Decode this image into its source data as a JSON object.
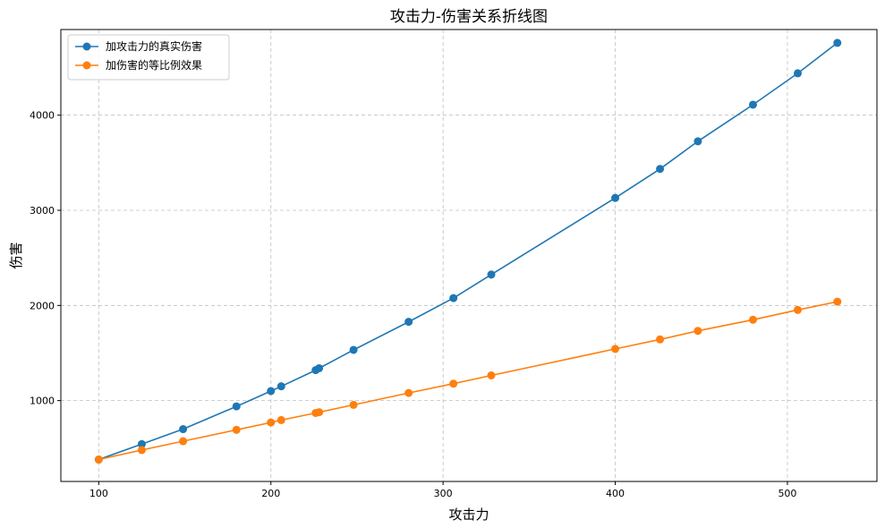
{
  "chart_data": {
    "type": "line",
    "title": "攻击力-伤害关系折线图",
    "xlabel": "攻击力",
    "ylabel": "伤害",
    "xlim": [
      78,
      552
    ],
    "ylim": [
      150,
      4900
    ],
    "xticks": [
      100,
      200,
      300,
      400,
      500
    ],
    "yticks": [
      1000,
      2000,
      3000,
      4000
    ],
    "grid": true,
    "legend_position": "top-left",
    "x": [
      100,
      125,
      149,
      180,
      200,
      206,
      226,
      228,
      248,
      280,
      306,
      328,
      400,
      426,
      448,
      480,
      506,
      529
    ],
    "series": [
      {
        "name": "加攻击力的真实伤害",
        "color": "#1f77b4",
        "values": [
          380,
          543,
          700,
          939,
          1100,
          1150,
          1320,
          1340,
          1533,
          1828,
          2077,
          2325,
          3130,
          3435,
          3725,
          4110,
          4440,
          4760
        ]
      },
      {
        "name": "加伤害的等比例效果",
        "color": "#ff7f0e",
        "values": [
          380,
          480,
          573,
          693,
          770,
          795,
          870,
          878,
          955,
          1080,
          1178,
          1265,
          1543,
          1643,
          1733,
          1850,
          1953,
          2040
        ]
      }
    ]
  }
}
